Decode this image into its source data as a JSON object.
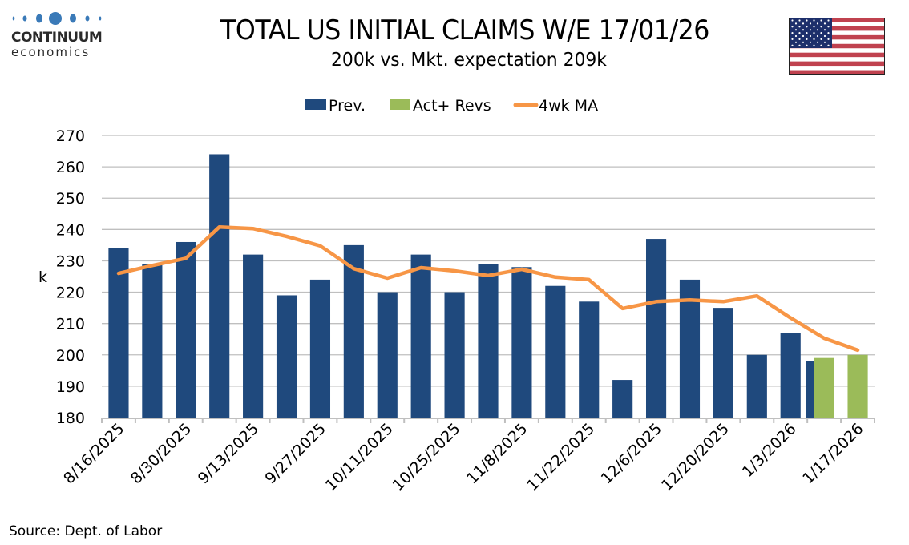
{
  "logo": {
    "name": "CONTINUUM",
    "sub": "economics",
    "color": "#3a7ab8"
  },
  "title": "TOTAL US INITIAL CLAIMS W/E 17/01/26",
  "subtitle": "200k vs. Mkt. expectation 209k",
  "source": "Source: Dept. of Labor",
  "colors": {
    "prev": "#1f497d",
    "act": "#9bbb59",
    "ma": "#f79646",
    "grid": "#bfbfbf"
  },
  "chart_data": {
    "type": "bar",
    "title": "TOTAL US INITIAL CLAIMS W/E 17/01/26",
    "subtitle": "200k vs. Mkt. expectation 209k",
    "xlabel": "",
    "ylabel": "k",
    "ylim": [
      180,
      270
    ],
    "yticks": [
      180,
      190,
      200,
      210,
      220,
      230,
      240,
      250,
      260,
      270
    ],
    "grid": true,
    "legend": {
      "position": "top-center",
      "entries": [
        "Prev.",
        "Act+ Revs",
        "4wk MA"
      ]
    },
    "x_tick_labels": [
      "8/16/2025",
      "8/30/2025",
      "9/13/2025",
      "9/27/2025",
      "10/11/2025",
      "10/25/2025",
      "11/8/2025",
      "11/22/2025",
      "12/6/2025",
      "12/20/2025",
      "1/3/2026",
      "1/17/2026"
    ],
    "categories": [
      "8/16/2025",
      "8/23/2025",
      "8/30/2025",
      "9/6/2025",
      "9/13/2025",
      "9/20/2025",
      "9/27/2025",
      "10/4/2025",
      "10/11/2025",
      "10/18/2025",
      "10/25/2025",
      "11/1/2025",
      "11/8/2025",
      "11/15/2025",
      "11/22/2025",
      "11/29/2025",
      "12/6/2025",
      "12/13/2025",
      "12/20/2025",
      "12/27/2025",
      "1/3/2026",
      "1/10/2026",
      "1/17/2026"
    ],
    "series": [
      {
        "name": "Prev.",
        "type": "bar",
        "values": [
          234,
          229,
          236,
          264,
          232,
          219,
          224,
          235,
          220,
          232,
          220,
          229,
          228,
          222,
          217,
          192,
          237,
          224,
          215,
          200,
          207,
          198,
          null
        ]
      },
      {
        "name": "Act+ Revs",
        "type": "bar",
        "values": [
          null,
          null,
          null,
          null,
          null,
          null,
          null,
          null,
          null,
          null,
          null,
          null,
          null,
          null,
          null,
          null,
          null,
          null,
          null,
          null,
          null,
          199,
          200
        ]
      },
      {
        "name": "4wk MA",
        "type": "line",
        "values": [
          226,
          228.5,
          230.8,
          240.8,
          240.3,
          237.8,
          234.8,
          227.5,
          224.5,
          227.8,
          226.8,
          225.3,
          227.3,
          224.8,
          224.0,
          214.8,
          217.0,
          217.5,
          217.0,
          218.8,
          211.8,
          205.3,
          201.5
        ]
      }
    ]
  }
}
